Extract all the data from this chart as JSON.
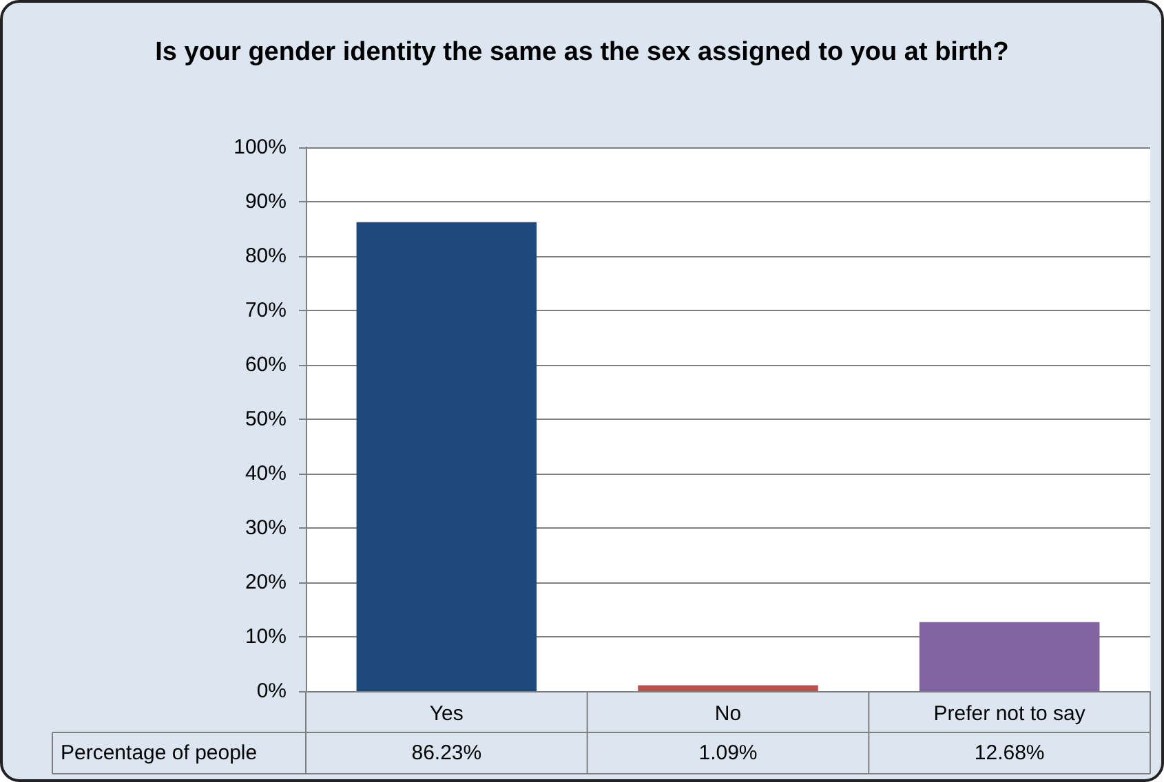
{
  "chart_data": {
    "type": "bar",
    "title": "Is your gender identity the same as the sex assigned to you at birth?",
    "categories": [
      "Yes",
      "No",
      "Prefer not to say"
    ],
    "series": [
      {
        "name": "Percentage of people",
        "colors": [
          "#1f497d",
          "#c0504d",
          "#8064a2"
        ],
        "values": [
          86.23,
          1.09,
          12.68
        ],
        "value_labels": [
          "86.23%",
          "1.09%",
          "12.68%"
        ]
      }
    ],
    "ylim": [
      0,
      100
    ],
    "yticks": [
      {
        "value": 0,
        "label": "0%"
      },
      {
        "value": 10,
        "label": "10%"
      },
      {
        "value": 20,
        "label": "20%"
      },
      {
        "value": 30,
        "label": "30%"
      },
      {
        "value": 40,
        "label": "40%"
      },
      {
        "value": 50,
        "label": "50%"
      },
      {
        "value": 60,
        "label": "60%"
      },
      {
        "value": 70,
        "label": "70%"
      },
      {
        "value": 80,
        "label": "80%"
      },
      {
        "value": 90,
        "label": "90%"
      },
      {
        "value": 100,
        "label": "100%"
      }
    ],
    "grid": "y",
    "legend": false
  }
}
